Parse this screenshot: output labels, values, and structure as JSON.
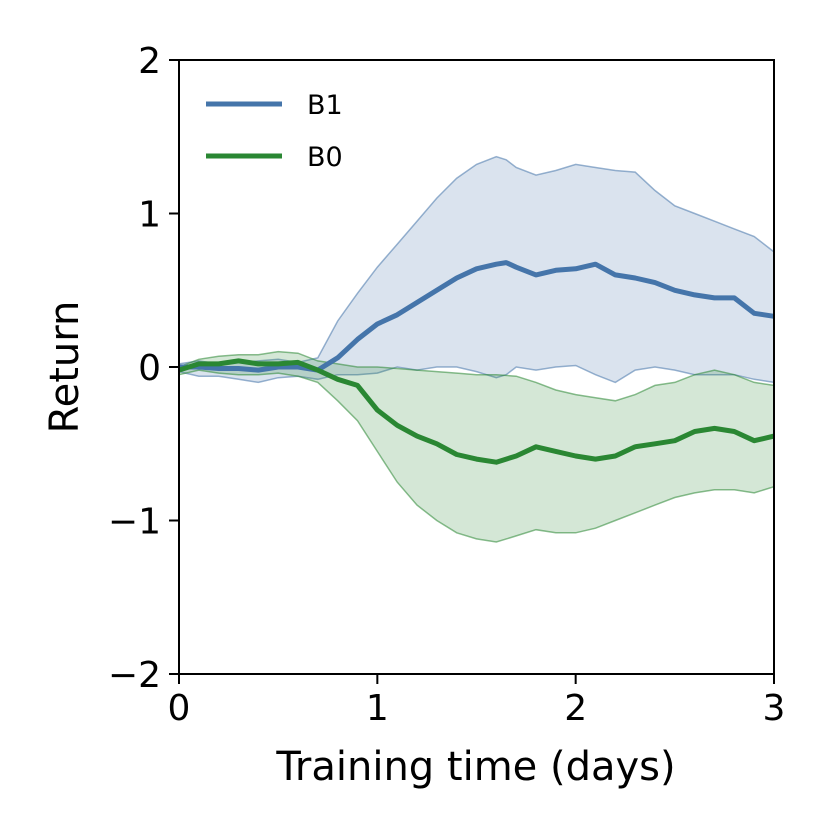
{
  "chart_data": {
    "type": "line",
    "title": "",
    "xlabel": "Training time (days)",
    "ylabel": "Return",
    "xlim": [
      0,
      3
    ],
    "ylim": [
      -2,
      2
    ],
    "xticks": [
      0,
      1,
      2,
      3
    ],
    "yticks": [
      -2,
      -1,
      0,
      1,
      2
    ],
    "xtick_labels": [
      "0",
      "1",
      "2",
      "3"
    ],
    "ytick_labels": [
      "−2",
      "−1",
      "0",
      "1",
      "2"
    ],
    "grid": false,
    "legend_position": "top-left",
    "series": [
      {
        "name": "B1",
        "color": "#4575aa",
        "x": [
          0,
          0.1,
          0.2,
          0.3,
          0.4,
          0.5,
          0.6,
          0.7,
          0.8,
          0.9,
          1.0,
          1.1,
          1.2,
          1.3,
          1.4,
          1.5,
          1.6,
          1.65,
          1.7,
          1.8,
          1.9,
          2.0,
          2.1,
          2.2,
          2.3,
          2.4,
          2.5,
          2.6,
          2.7,
          2.8,
          2.9,
          3.0
        ],
        "mean": [
          0.0,
          0.0,
          -0.01,
          -0.01,
          -0.02,
          0.0,
          0.0,
          -0.02,
          0.06,
          0.18,
          0.28,
          0.34,
          0.42,
          0.5,
          0.58,
          0.64,
          0.67,
          0.68,
          0.65,
          0.6,
          0.63,
          0.64,
          0.67,
          0.6,
          0.58,
          0.55,
          0.5,
          0.47,
          0.45,
          0.45,
          0.35,
          0.33
        ],
        "upper": [
          0.02,
          0.04,
          0.02,
          0.03,
          0.04,
          0.05,
          0.03,
          0.06,
          0.3,
          0.48,
          0.65,
          0.8,
          0.95,
          1.1,
          1.23,
          1.32,
          1.37,
          1.35,
          1.3,
          1.25,
          1.28,
          1.32,
          1.3,
          1.28,
          1.27,
          1.15,
          1.05,
          1.0,
          0.95,
          0.9,
          0.85,
          0.75
        ],
        "lower": [
          -0.03,
          -0.06,
          -0.06,
          -0.08,
          -0.1,
          -0.07,
          -0.06,
          -0.08,
          -0.05,
          -0.05,
          -0.04,
          0.0,
          -0.02,
          0.0,
          0.0,
          -0.03,
          -0.07,
          -0.05,
          0.0,
          -0.02,
          0.0,
          0.01,
          -0.05,
          -0.1,
          -0.02,
          0.0,
          -0.02,
          -0.05,
          -0.05,
          -0.05,
          -0.08,
          -0.1
        ]
      },
      {
        "name": "B0",
        "color": "#2a8733",
        "x": [
          0,
          0.1,
          0.2,
          0.3,
          0.4,
          0.5,
          0.6,
          0.7,
          0.8,
          0.9,
          1.0,
          1.1,
          1.2,
          1.3,
          1.4,
          1.5,
          1.6,
          1.7,
          1.8,
          1.9,
          2.0,
          2.1,
          2.2,
          2.3,
          2.4,
          2.5,
          2.6,
          2.7,
          2.8,
          2.9,
          3.0
        ],
        "mean": [
          -0.02,
          0.02,
          0.02,
          0.04,
          0.02,
          0.02,
          0.03,
          -0.02,
          -0.08,
          -0.12,
          -0.28,
          -0.38,
          -0.45,
          -0.5,
          -0.57,
          -0.6,
          -0.62,
          -0.58,
          -0.52,
          -0.55,
          -0.58,
          -0.6,
          -0.58,
          -0.52,
          -0.5,
          -0.48,
          -0.42,
          -0.4,
          -0.42,
          -0.48,
          -0.45
        ],
        "upper": [
          0.0,
          0.05,
          0.07,
          0.08,
          0.08,
          0.1,
          0.09,
          0.04,
          0.02,
          0.0,
          0.0,
          -0.01,
          -0.02,
          -0.03,
          -0.04,
          -0.05,
          -0.05,
          -0.06,
          -0.1,
          -0.15,
          -0.18,
          -0.2,
          -0.22,
          -0.18,
          -0.12,
          -0.1,
          -0.05,
          -0.02,
          -0.05,
          -0.1,
          -0.12
        ],
        "lower": [
          -0.05,
          -0.02,
          -0.04,
          -0.05,
          -0.05,
          -0.04,
          -0.06,
          -0.1,
          -0.22,
          -0.35,
          -0.55,
          -0.75,
          -0.9,
          -1.0,
          -1.08,
          -1.12,
          -1.14,
          -1.1,
          -1.06,
          -1.08,
          -1.08,
          -1.05,
          -1.0,
          -0.95,
          -0.9,
          -0.85,
          -0.82,
          -0.8,
          -0.8,
          -0.82,
          -0.78
        ]
      }
    ]
  }
}
